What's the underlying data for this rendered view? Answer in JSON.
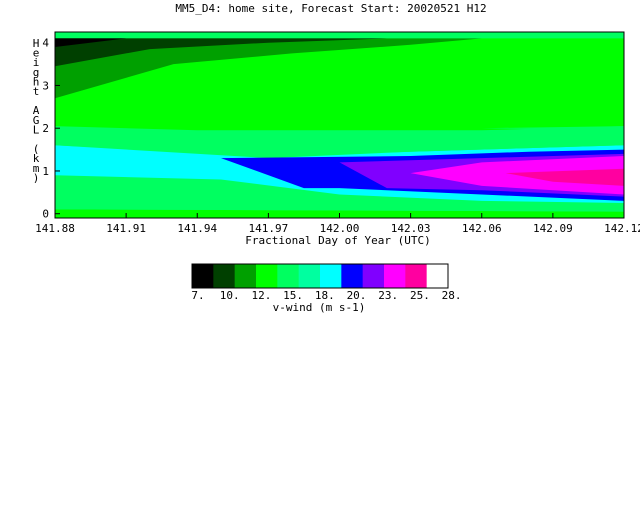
{
  "chart_data": {
    "type": "heatmap",
    "title": "MM5_D4: home site,  Forecast Start: 20020521 H12",
    "xlabel": "Fractional Day of Year (UTC)",
    "ylabel": "Height AGL (km)",
    "xlim": [
      141.88,
      142.12
    ],
    "ylim": [
      -0.1,
      4.25
    ],
    "x_ticks": [
      "141.88",
      "141.91",
      "141.94",
      "141.97",
      "142.00",
      "142.03",
      "142.06",
      "142.09",
      "142.12"
    ],
    "x_tick_values": [
      141.88,
      141.91,
      141.94,
      141.97,
      142.0,
      142.03,
      142.06,
      142.09,
      142.12
    ],
    "y_ticks": [
      "0",
      "1",
      "2",
      "3",
      "4"
    ],
    "y_tick_values": [
      0,
      1,
      2,
      3,
      4
    ],
    "colorbar": {
      "label": "v-wind (m s-1)",
      "tick_labels": [
        "7.",
        "10.",
        "12.",
        "15.",
        "18.",
        "20.",
        "23.",
        "25.",
        "28."
      ],
      "colors": [
        "#000000",
        "#004000",
        "#00a000",
        "#00ff00",
        "#00ff60",
        "#00ffa0",
        "#00ffff",
        "#0000ff",
        "#8000ff",
        "#ff00ff",
        "#ff00a0",
        "#ffffff"
      ]
    },
    "regions": [
      {
        "name": "near-surface band",
        "level_color": "#00ff00",
        "points": [
          [
            141.88,
            -0.1
          ],
          [
            142.12,
            -0.1
          ],
          [
            142.12,
            0.05
          ],
          [
            141.88,
            0.1
          ]
        ]
      },
      {
        "name": "low level band",
        "level_color": "#00ff60",
        "points": [
          [
            141.88,
            0.1
          ],
          [
            142.12,
            0.05
          ],
          [
            142.12,
            0.45
          ],
          [
            142.0,
            0.6
          ],
          [
            141.95,
            0.9
          ],
          [
            141.88,
            1.0
          ]
        ]
      },
      {
        "name": "cyan jet layer",
        "level_color": "#00ffff",
        "points": [
          [
            141.88,
            0.9
          ],
          [
            141.95,
            0.8
          ],
          [
            142.0,
            0.45
          ],
          [
            142.06,
            0.3
          ],
          [
            142.12,
            0.25
          ],
          [
            142.12,
            1.6
          ],
          [
            142.03,
            1.45
          ],
          [
            141.97,
            1.3
          ],
          [
            141.88,
            1.6
          ]
        ]
      },
      {
        "name": "blue jet core",
        "level_color": "#0000ff",
        "points": [
          [
            141.95,
            1.3
          ],
          [
            142.03,
            1.35
          ],
          [
            142.08,
            1.45
          ],
          [
            142.12,
            1.5
          ],
          [
            142.12,
            0.3
          ],
          [
            142.06,
            0.45
          ],
          [
            142.0,
            0.6
          ],
          [
            141.985,
            0.6
          ]
        ]
      },
      {
        "name": "violet jet core",
        "level_color": "#8000ff",
        "points": [
          [
            142.0,
            1.2
          ],
          [
            142.06,
            1.3
          ],
          [
            142.12,
            1.4
          ],
          [
            142.12,
            0.4
          ],
          [
            142.06,
            0.55
          ],
          [
            142.02,
            0.6
          ]
        ]
      },
      {
        "name": "magenta jet core",
        "level_color": "#ff00ff",
        "points": [
          [
            142.03,
            0.95
          ],
          [
            142.06,
            1.2
          ],
          [
            142.12,
            1.35
          ],
          [
            142.12,
            0.45
          ],
          [
            142.06,
            0.65
          ]
        ]
      },
      {
        "name": "pink max",
        "level_color": "#ff00a0",
        "points": [
          [
            142.07,
            0.95
          ],
          [
            142.12,
            1.05
          ],
          [
            142.12,
            0.65
          ],
          [
            142.09,
            0.75
          ]
        ]
      },
      {
        "name": "mid level band",
        "level_color": "#00ff60",
        "points": [
          [
            141.88,
            1.6
          ],
          [
            141.97,
            1.35
          ],
          [
            142.03,
            1.45
          ],
          [
            142.12,
            1.6
          ],
          [
            142.12,
            2.05
          ],
          [
            142.06,
            2.0
          ],
          [
            142.0,
            1.95
          ],
          [
            141.94,
            1.95
          ],
          [
            141.88,
            2.05
          ]
        ]
      },
      {
        "name": "upper green",
        "level_color": "#00ff00",
        "points": [
          [
            141.88,
            2.05
          ],
          [
            141.94,
            1.95
          ],
          [
            142.0,
            1.95
          ],
          [
            142.06,
            1.95
          ],
          [
            142.12,
            2.05
          ],
          [
            142.12,
            4.1
          ],
          [
            142.06,
            4.1
          ],
          [
            142.03,
            4.0
          ],
          [
            141.98,
            3.85
          ],
          [
            141.93,
            3.7
          ],
          [
            141.88,
            2.7
          ]
        ]
      },
      {
        "name": "upper green bulge",
        "level_color": "#00ff60",
        "points": [
          [
            142.06,
            2.0
          ],
          [
            142.12,
            2.05
          ],
          [
            142.12,
            1.95
          ]
        ]
      },
      {
        "name": "upper mid green",
        "level_color": "#00a000",
        "points": [
          [
            141.88,
            2.7
          ],
          [
            141.93,
            3.5
          ],
          [
            141.98,
            3.75
          ],
          [
            142.03,
            3.95
          ],
          [
            142.06,
            4.1
          ],
          [
            141.88,
            4.1
          ]
        ]
      },
      {
        "name": "upper dark green",
        "level_color": "#004000",
        "points": [
          [
            141.88,
            3.45
          ],
          [
            141.92,
            3.85
          ],
          [
            141.97,
            4.0
          ],
          [
            142.02,
            4.1
          ],
          [
            141.88,
            4.1
          ]
        ]
      },
      {
        "name": "top black",
        "level_color": "#000000",
        "points": [
          [
            141.88,
            3.9
          ],
          [
            141.91,
            4.1
          ],
          [
            141.88,
            4.1
          ]
        ]
      }
    ]
  }
}
